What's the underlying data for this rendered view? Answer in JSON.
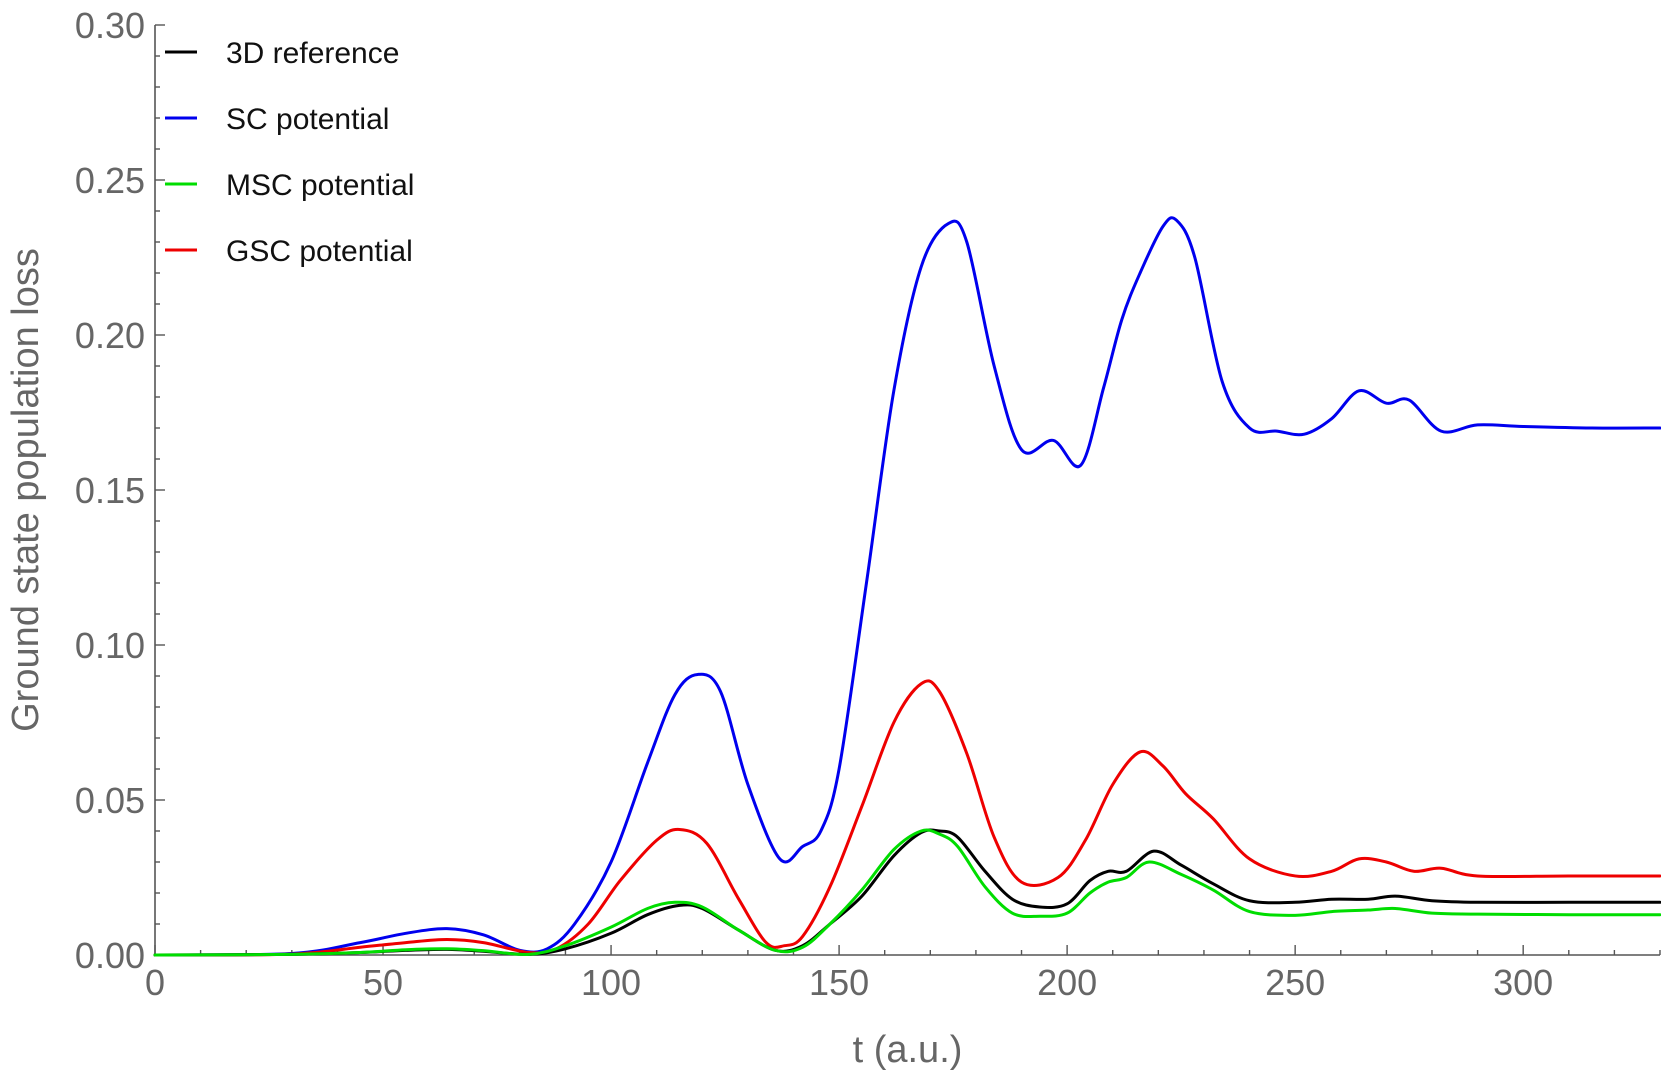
{
  "chart_data": {
    "type": "line",
    "title": "",
    "xlabel": "t (a.u.)",
    "ylabel": "Ground state population loss",
    "xlim": [
      0,
      330
    ],
    "ylim": [
      0,
      0.3
    ],
    "xticks": [
      0,
      50,
      100,
      150,
      200,
      250,
      300
    ],
    "xtick_labels": [
      "0",
      "50",
      "100",
      "150",
      "200",
      "250",
      "300"
    ],
    "yticks": [
      0,
      0.05,
      0.1,
      0.15,
      0.2,
      0.25,
      0.3
    ],
    "ytick_labels": [
      "0.00",
      "0.05",
      "0.10",
      "0.15",
      "0.20",
      "0.25",
      "0.30"
    ],
    "grid": false,
    "legend_position": "top-left",
    "series": [
      {
        "name": "3D reference",
        "color": "#000000",
        "points": [
          [
            0,
            0
          ],
          [
            30,
            0.0002
          ],
          [
            45,
            0.0008
          ],
          [
            55,
            0.0015
          ],
          [
            64,
            0.0018
          ],
          [
            72,
            0.0012
          ],
          [
            82,
            0.0002
          ],
          [
            90,
            0.002
          ],
          [
            100,
            0.007
          ],
          [
            108,
            0.013
          ],
          [
            115,
            0.016
          ],
          [
            120,
            0.015
          ],
          [
            128,
            0.008
          ],
          [
            136,
            0.0015
          ],
          [
            142,
            0.003
          ],
          [
            148,
            0.01
          ],
          [
            155,
            0.019
          ],
          [
            162,
            0.032
          ],
          [
            168,
            0.0395
          ],
          [
            172,
            0.04
          ],
          [
            176,
            0.038
          ],
          [
            182,
            0.027
          ],
          [
            188,
            0.018
          ],
          [
            194,
            0.0155
          ],
          [
            200,
            0.0165
          ],
          [
            205,
            0.024
          ],
          [
            209,
            0.027
          ],
          [
            213,
            0.027
          ],
          [
            219,
            0.0335
          ],
          [
            225,
            0.029
          ],
          [
            232,
            0.023
          ],
          [
            240,
            0.0175
          ],
          [
            250,
            0.017
          ],
          [
            258,
            0.018
          ],
          [
            266,
            0.018
          ],
          [
            272,
            0.019
          ],
          [
            280,
            0.0175
          ],
          [
            290,
            0.017
          ],
          [
            310,
            0.017
          ],
          [
            330,
            0.017
          ]
        ]
      },
      {
        "name": "SC potential",
        "color": "#0000ee",
        "points": [
          [
            0,
            0
          ],
          [
            30,
            0.0005
          ],
          [
            45,
            0.004
          ],
          [
            55,
            0.007
          ],
          [
            64,
            0.0085
          ],
          [
            72,
            0.0065
          ],
          [
            80,
            0.0015
          ],
          [
            86,
            0.002
          ],
          [
            92,
            0.01
          ],
          [
            100,
            0.03
          ],
          [
            108,
            0.062
          ],
          [
            114,
            0.084
          ],
          [
            119,
            0.0905
          ],
          [
            124,
            0.085
          ],
          [
            130,
            0.055
          ],
          [
            137,
            0.031
          ],
          [
            142,
            0.035
          ],
          [
            146,
            0.04
          ],
          [
            150,
            0.06
          ],
          [
            156,
            0.12
          ],
          [
            162,
            0.182
          ],
          [
            168,
            0.222
          ],
          [
            174,
            0.236
          ],
          [
            178,
            0.23
          ],
          [
            184,
            0.19
          ],
          [
            190,
            0.163
          ],
          [
            197,
            0.166
          ],
          [
            203,
            0.158
          ],
          [
            208,
            0.183
          ],
          [
            212,
            0.205
          ],
          [
            216,
            0.22
          ],
          [
            221,
            0.235
          ],
          [
            224,
            0.237
          ],
          [
            228,
            0.225
          ],
          [
            234,
            0.185
          ],
          [
            240,
            0.17
          ],
          [
            246,
            0.169
          ],
          [
            252,
            0.168
          ],
          [
            258,
            0.173
          ],
          [
            264,
            0.182
          ],
          [
            270,
            0.178
          ],
          [
            275,
            0.179
          ],
          [
            282,
            0.169
          ],
          [
            290,
            0.171
          ],
          [
            300,
            0.1705
          ],
          [
            315,
            0.17
          ],
          [
            330,
            0.17
          ]
        ]
      },
      {
        "name": "MSC potential",
        "color": "#00dd00",
        "points": [
          [
            0,
            0
          ],
          [
            30,
            0.0002
          ],
          [
            45,
            0.0008
          ],
          [
            55,
            0.0017
          ],
          [
            64,
            0.002
          ],
          [
            72,
            0.0014
          ],
          [
            82,
            0.0002
          ],
          [
            90,
            0.003
          ],
          [
            100,
            0.009
          ],
          [
            108,
            0.015
          ],
          [
            114,
            0.017
          ],
          [
            120,
            0.0155
          ],
          [
            128,
            0.008
          ],
          [
            136,
            0.0015
          ],
          [
            142,
            0.0025
          ],
          [
            148,
            0.01
          ],
          [
            155,
            0.021
          ],
          [
            162,
            0.034
          ],
          [
            168,
            0.04
          ],
          [
            172,
            0.039
          ],
          [
            176,
            0.035
          ],
          [
            182,
            0.022
          ],
          [
            188,
            0.0135
          ],
          [
            194,
            0.0125
          ],
          [
            200,
            0.0135
          ],
          [
            205,
            0.02
          ],
          [
            209,
            0.0235
          ],
          [
            213,
            0.025
          ],
          [
            218,
            0.03
          ],
          [
            225,
            0.026
          ],
          [
            232,
            0.021
          ],
          [
            240,
            0.014
          ],
          [
            250,
            0.0128
          ],
          [
            258,
            0.014
          ],
          [
            266,
            0.0145
          ],
          [
            272,
            0.015
          ],
          [
            280,
            0.0135
          ],
          [
            290,
            0.0132
          ],
          [
            310,
            0.013
          ],
          [
            330,
            0.013
          ]
        ]
      },
      {
        "name": "GSC potential",
        "color": "#ee0000",
        "points": [
          [
            0,
            0
          ],
          [
            30,
            0.0003
          ],
          [
            45,
            0.0025
          ],
          [
            55,
            0.004
          ],
          [
            64,
            0.005
          ],
          [
            72,
            0.004
          ],
          [
            82,
            0.0008
          ],
          [
            88,
            0.002
          ],
          [
            95,
            0.01
          ],
          [
            102,
            0.024
          ],
          [
            110,
            0.037
          ],
          [
            115,
            0.0405
          ],
          [
            121,
            0.036
          ],
          [
            128,
            0.018
          ],
          [
            134,
            0.004
          ],
          [
            138,
            0.003
          ],
          [
            142,
            0.006
          ],
          [
            148,
            0.022
          ],
          [
            155,
            0.048
          ],
          [
            162,
            0.075
          ],
          [
            168,
            0.0875
          ],
          [
            172,
            0.085
          ],
          [
            178,
            0.065
          ],
          [
            184,
            0.038
          ],
          [
            190,
            0.0235
          ],
          [
            198,
            0.025
          ],
          [
            204,
            0.037
          ],
          [
            210,
            0.055
          ],
          [
            216,
            0.0655
          ],
          [
            221,
            0.061
          ],
          [
            226,
            0.052
          ],
          [
            232,
            0.044
          ],
          [
            240,
            0.031
          ],
          [
            250,
            0.0255
          ],
          [
            258,
            0.027
          ],
          [
            264,
            0.031
          ],
          [
            270,
            0.03
          ],
          [
            276,
            0.027
          ],
          [
            282,
            0.028
          ],
          [
            290,
            0.0255
          ],
          [
            310,
            0.0255
          ],
          [
            330,
            0.0255
          ]
        ]
      }
    ]
  }
}
